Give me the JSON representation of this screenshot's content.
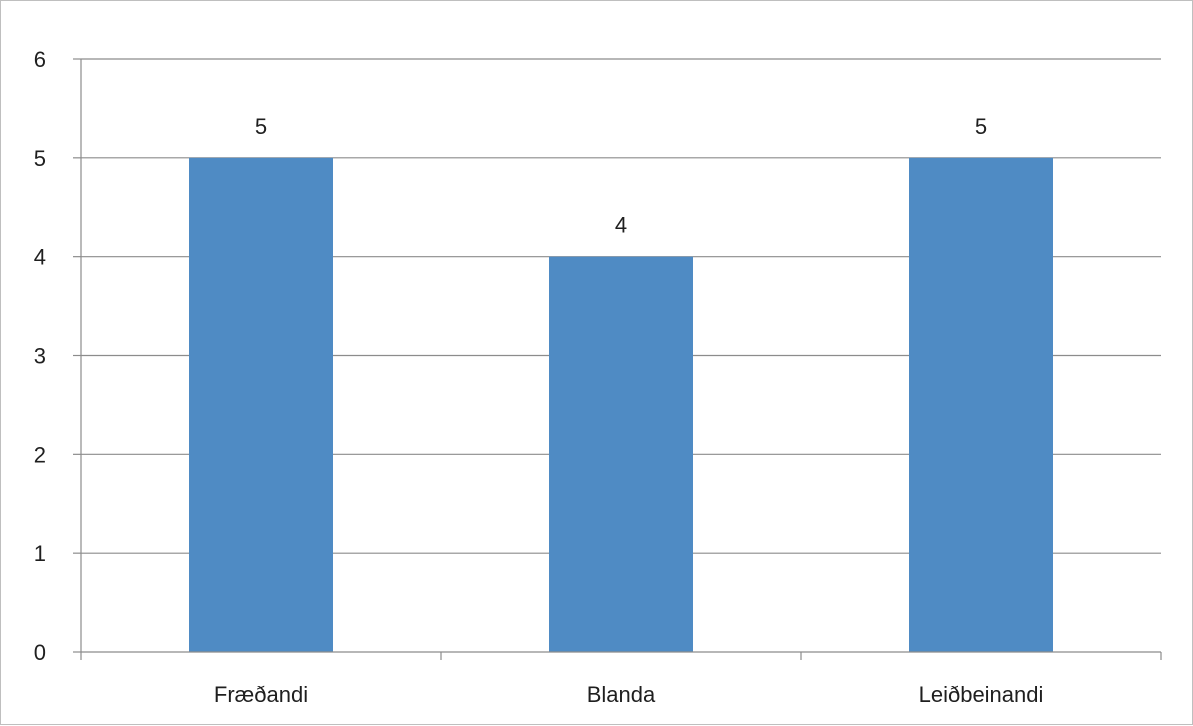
{
  "chart_data": {
    "type": "bar",
    "categories": [
      "Fræðandi",
      "Blanda",
      "Leiðbeinandi"
    ],
    "values": [
      5,
      4,
      5
    ],
    "data_labels": [
      "5",
      "4",
      "5"
    ],
    "y_ticks": [
      "0",
      "1",
      "2",
      "3",
      "4",
      "5",
      "6"
    ],
    "ylim": [
      0,
      6
    ],
    "grid": true,
    "legend": "none",
    "bar_color": "#4f8bc4"
  }
}
